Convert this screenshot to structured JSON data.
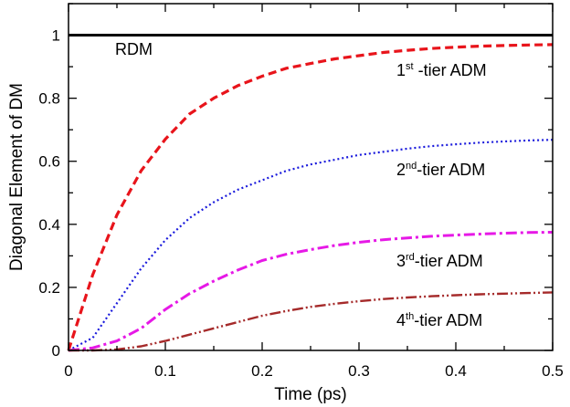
{
  "chart_data": {
    "type": "line",
    "xlabel": "Time (ps)",
    "ylabel": "Diagonal Element of DM",
    "xlim": [
      0,
      0.5
    ],
    "ylim": [
      0,
      1.1
    ],
    "x_ticks": [
      "0",
      "0.1",
      "0.2",
      "0.3",
      "0.4",
      "0.5"
    ],
    "y_ticks": [
      "0",
      "0.2",
      "0.4",
      "0.6",
      "0.8",
      "1"
    ],
    "grid": false,
    "x": [
      0,
      0.025,
      0.05,
      0.075,
      0.1,
      0.125,
      0.15,
      0.175,
      0.2,
      0.225,
      0.25,
      0.275,
      0.3,
      0.325,
      0.35,
      0.375,
      0.4,
      0.425,
      0.45,
      0.475,
      0.5
    ],
    "series": [
      {
        "annotation": {
          "base": "RDM",
          "sup": "",
          "suffix": ""
        },
        "color": "#000000",
        "style": "solid",
        "values": [
          1,
          1,
          1,
          1,
          1,
          1,
          1,
          1,
          1,
          1,
          1,
          1,
          1,
          1,
          1,
          1,
          1,
          1,
          1,
          1,
          1
        ]
      },
      {
        "annotation": {
          "base": "1",
          "sup": "st",
          "suffix": " -tier ADM"
        },
        "color": "#e8141b",
        "style": "dash",
        "values": [
          0,
          0.24,
          0.43,
          0.57,
          0.67,
          0.75,
          0.8,
          0.84,
          0.87,
          0.895,
          0.91,
          0.925,
          0.935,
          0.945,
          0.952,
          0.958,
          0.962,
          0.965,
          0.967,
          0.969,
          0.97
        ]
      },
      {
        "annotation": {
          "base": "2",
          "sup": "nd",
          "suffix": "-tier ADM"
        },
        "color": "#1a1adc",
        "style": "dot",
        "values": [
          0,
          0.04,
          0.15,
          0.26,
          0.35,
          0.42,
          0.47,
          0.51,
          0.54,
          0.57,
          0.59,
          0.605,
          0.62,
          0.63,
          0.64,
          0.648,
          0.654,
          0.659,
          0.663,
          0.666,
          0.668
        ]
      },
      {
        "annotation": {
          "base": "3",
          "sup": "rd",
          "suffix": "-tier ADM"
        },
        "color": "#e619e6",
        "style": "dashdot",
        "values": [
          0,
          0.008,
          0.03,
          0.07,
          0.13,
          0.18,
          0.22,
          0.255,
          0.285,
          0.305,
          0.32,
          0.333,
          0.343,
          0.351,
          0.357,
          0.362,
          0.366,
          0.369,
          0.372,
          0.374,
          0.375
        ]
      },
      {
        "annotation": {
          "base": "4",
          "sup": "th",
          "suffix": "-tier ADM"
        },
        "color": "#a52a2a",
        "style": "dashdotdot",
        "values": [
          0,
          0,
          0.003,
          0.013,
          0.03,
          0.05,
          0.07,
          0.09,
          0.11,
          0.125,
          0.138,
          0.148,
          0.156,
          0.163,
          0.168,
          0.172,
          0.175,
          0.178,
          0.18,
          0.182,
          0.184
        ]
      }
    ]
  }
}
